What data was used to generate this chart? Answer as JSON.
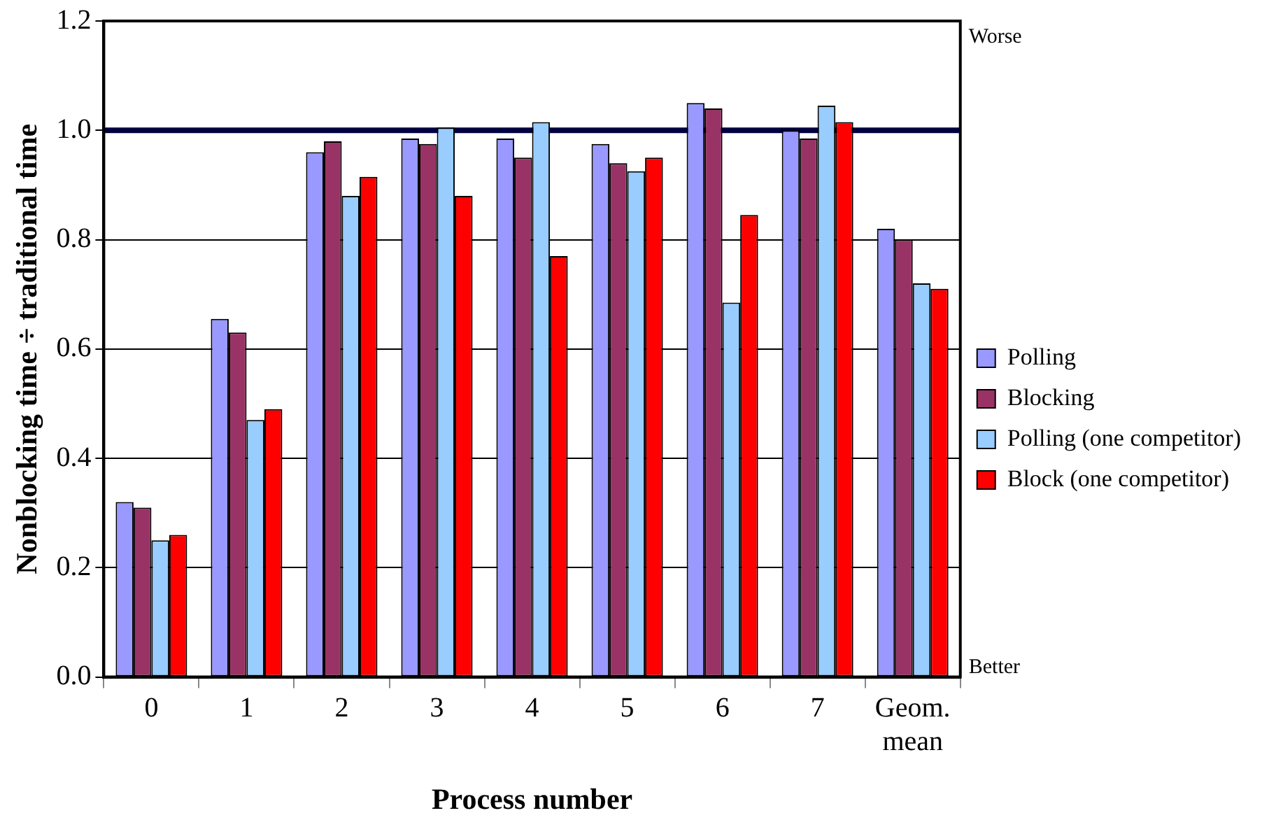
{
  "chart_data": {
    "type": "bar",
    "xlabel": "Process number",
    "ylabel": "Nonblocking time ÷ traditional time",
    "categories": [
      "0",
      "1",
      "2",
      "3",
      "4",
      "5",
      "6",
      "7",
      "Geom. mean"
    ],
    "series": [
      {
        "name": "Polling",
        "color": "#9999ff",
        "values": [
          0.32,
          0.655,
          0.96,
          0.985,
          0.985,
          0.975,
          1.05,
          1.0,
          0.82
        ]
      },
      {
        "name": "Blocking",
        "color": "#993366",
        "values": [
          0.31,
          0.63,
          0.98,
          0.975,
          0.95,
          0.94,
          1.04,
          0.985,
          0.8
        ]
      },
      {
        "name": "Polling (one competitor)",
        "color": "#99ccff",
        "values": [
          0.25,
          0.47,
          0.88,
          1.005,
          1.015,
          0.925,
          0.685,
          1.045,
          0.72
        ]
      },
      {
        "name": "Block (one competitor)",
        "color": "#ff0000",
        "values": [
          0.26,
          0.49,
          0.915,
          0.88,
          0.77,
          0.95,
          0.845,
          1.015,
          0.71
        ]
      }
    ],
    "ylim": [
      0,
      1.2
    ],
    "yticks": [
      {
        "value": 0,
        "label": "0.0"
      },
      0.2,
      0.4,
      0.6,
      0.8,
      {
        "value": 1,
        "label": "1.0"
      },
      1.2
    ],
    "ref_lines": [
      {
        "axis": "y",
        "value": 1,
        "color": "#000040"
      }
    ],
    "annotations": [
      "Worse",
      "Better"
    ],
    "grid": "y",
    "legend": "right"
  }
}
